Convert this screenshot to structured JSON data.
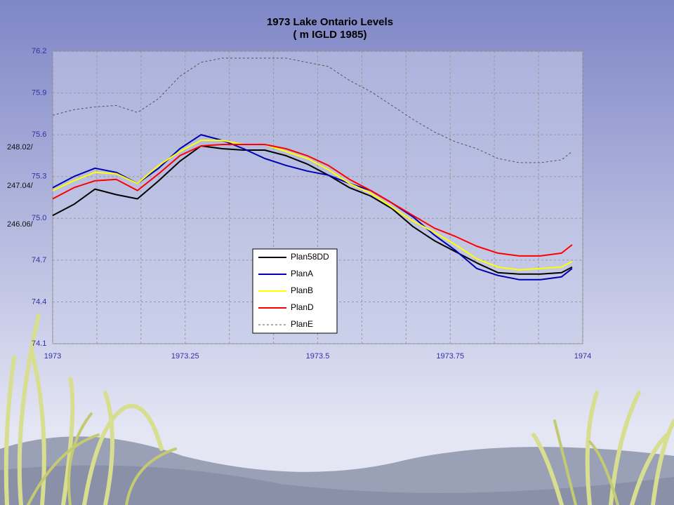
{
  "chart_data": {
    "type": "line",
    "title": "1973 Lake Ontario Levels",
    "subtitle": "( m IGLD 1985)",
    "side_labels": [
      "248.02/",
      "247.04/",
      "246.06/"
    ],
    "x": [
      1973,
      1973.04,
      1973.08,
      1973.12,
      1973.16,
      1973.2,
      1973.24,
      1973.28,
      1973.32,
      1973.36,
      1973.4,
      1973.44,
      1973.48,
      1973.52,
      1973.56,
      1973.6,
      1973.64,
      1973.68,
      1973.72,
      1973.76,
      1973.8,
      1973.84,
      1973.88,
      1973.92,
      1973.96,
      1973.98
    ],
    "series": [
      {
        "name": "Plan58DD",
        "color": "#000000",
        "dash": false,
        "values": [
          75.02,
          75.1,
          75.21,
          75.17,
          75.14,
          75.27,
          75.41,
          75.52,
          75.5,
          75.49,
          75.49,
          75.45,
          75.39,
          75.31,
          75.22,
          75.16,
          75.07,
          74.94,
          74.84,
          74.76,
          74.68,
          74.61,
          74.6,
          74.6,
          74.61,
          74.65
        ]
      },
      {
        "name": "PlanA",
        "color": "#0000b0",
        "dash": false,
        "values": [
          75.22,
          75.3,
          75.36,
          75.33,
          75.25,
          75.36,
          75.5,
          75.6,
          75.56,
          75.5,
          75.43,
          75.38,
          75.34,
          75.31,
          75.25,
          75.2,
          75.11,
          75.01,
          74.88,
          74.77,
          74.64,
          74.59,
          74.56,
          74.56,
          74.58,
          74.64
        ]
      },
      {
        "name": "PlanB",
        "color": "#ffff00",
        "dash": false,
        "values": [
          75.2,
          75.27,
          75.33,
          75.32,
          75.25,
          75.38,
          75.48,
          75.56,
          75.56,
          75.53,
          75.53,
          75.48,
          75.43,
          75.35,
          75.25,
          75.18,
          75.08,
          74.98,
          74.9,
          74.81,
          74.71,
          74.65,
          74.63,
          74.64,
          74.65,
          74.69
        ]
      },
      {
        "name": "PlanD",
        "color": "#ff0000",
        "dash": false,
        "values": [
          75.14,
          75.22,
          75.27,
          75.28,
          75.2,
          75.32,
          75.45,
          75.52,
          75.53,
          75.53,
          75.53,
          75.5,
          75.45,
          75.38,
          75.28,
          75.2,
          75.11,
          75.02,
          74.93,
          74.87,
          74.8,
          74.75,
          74.73,
          74.73,
          74.75,
          74.81
        ]
      },
      {
        "name": "PlanE",
        "color": "#555555",
        "dash": true,
        "values": [
          75.74,
          75.78,
          75.8,
          75.81,
          75.76,
          75.86,
          76.02,
          76.12,
          76.15,
          76.15,
          76.15,
          76.15,
          76.12,
          76.09,
          75.99,
          75.91,
          75.81,
          75.71,
          75.62,
          75.55,
          75.5,
          75.43,
          75.4,
          75.4,
          75.42,
          75.48
        ]
      }
    ],
    "xlim": [
      1973,
      1974
    ],
    "xticks": [
      1973,
      1973.25,
      1973.5,
      1973.75,
      1974
    ],
    "ylim": [
      74.1,
      76.2
    ],
    "yticks": [
      74.1,
      74.4,
      74.7,
      {
        "value": 75,
        "label": "75.0"
      },
      75.3,
      75.6,
      75.9,
      76.2
    ],
    "grid": true
  }
}
